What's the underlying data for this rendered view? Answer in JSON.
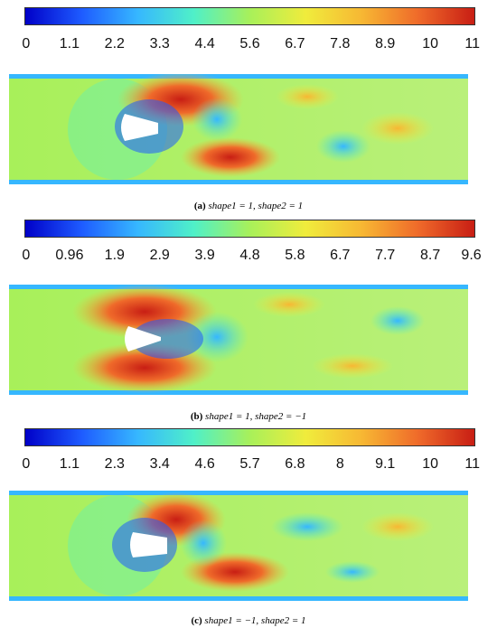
{
  "colormap": [
    "#0000c8",
    "#1e5bff",
    "#36b7ff",
    "#4ff0c8",
    "#a8f05a",
    "#f0ec3c",
    "#f7b733",
    "#ef6a2a",
    "#c81e14"
  ],
  "panels": [
    {
      "id": "a",
      "ticks": [
        "0",
        "1.1",
        "2.2",
        "3.3",
        "4.4",
        "5.6",
        "6.7",
        "7.8",
        "8.9",
        "10",
        "11"
      ],
      "caption": {
        "label": "(a)",
        "text": "shape1 = 1, shape2 = 1"
      }
    },
    {
      "id": "b",
      "ticks": [
        "0",
        "0.96",
        "1.9",
        "2.9",
        "3.9",
        "4.8",
        "5.8",
        "6.7",
        "7.7",
        "8.7",
        "9.6"
      ],
      "caption": {
        "label": "(b)",
        "text": "shape1 = 1, shape2 = −1"
      }
    },
    {
      "id": "c",
      "ticks": [
        "0",
        "1.1",
        "2.3",
        "3.4",
        "4.6",
        "5.7",
        "6.8",
        "8",
        "9.1",
        "10",
        "11"
      ],
      "caption": {
        "label": "(c)",
        "text": "shape1 = −1, shape2 = 1"
      }
    }
  ]
}
